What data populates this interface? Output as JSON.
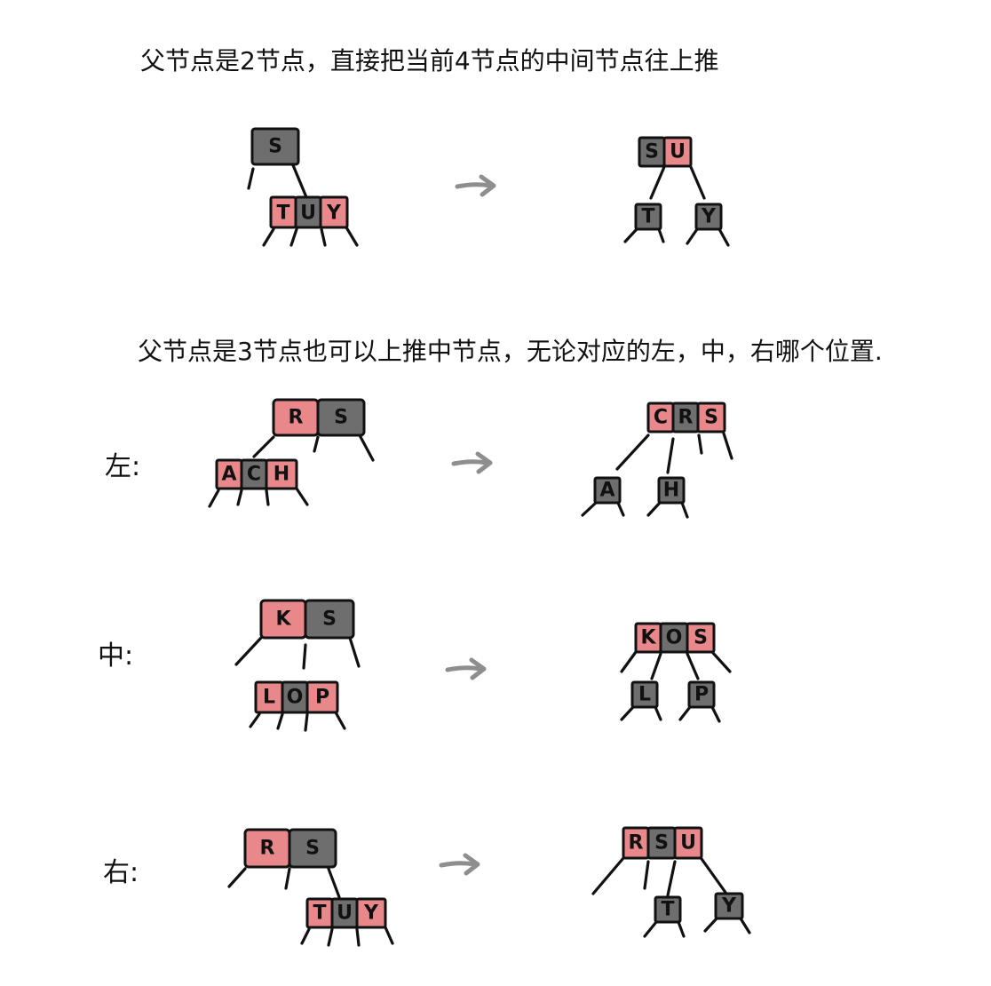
{
  "colors": {
    "red": "#e8888a",
    "black": "#6e6e6e",
    "ink": "#111111",
    "arrow": "#8e8e8e"
  },
  "captions": {
    "two_node": "父节点是2节点，直接把当前4节点的中间节点往上推",
    "three_node": "父节点是3节点也可以上推中节点，无论对应的左，中，右哪个位置."
  },
  "labels": {
    "left": "左:",
    "middle": "中:",
    "right": "右:"
  },
  "diagrams": {
    "two_node": {
      "before": {
        "parent": [
          {
            "k": "S",
            "c": "black"
          }
        ],
        "child": [
          {
            "k": "T",
            "c": "red"
          },
          {
            "k": "U",
            "c": "black"
          },
          {
            "k": "Y",
            "c": "red"
          }
        ]
      },
      "after": {
        "parent": [
          {
            "k": "S",
            "c": "black"
          },
          {
            "k": "U",
            "c": "red"
          }
        ],
        "children": [
          [
            {
              "k": "T",
              "c": "black"
            }
          ],
          [
            {
              "k": "Y",
              "c": "black"
            }
          ]
        ]
      }
    },
    "left": {
      "before": {
        "parent": [
          {
            "k": "R",
            "c": "red"
          },
          {
            "k": "S",
            "c": "black"
          }
        ],
        "child": [
          {
            "k": "A",
            "c": "red"
          },
          {
            "k": "C",
            "c": "black"
          },
          {
            "k": "H",
            "c": "red"
          }
        ]
      },
      "after": {
        "parent": [
          {
            "k": "C",
            "c": "red"
          },
          {
            "k": "R",
            "c": "black"
          },
          {
            "k": "S",
            "c": "red"
          }
        ],
        "children": [
          [
            {
              "k": "A",
              "c": "black"
            }
          ],
          [
            {
              "k": "H",
              "c": "black"
            }
          ]
        ]
      }
    },
    "middle": {
      "before": {
        "parent": [
          {
            "k": "K",
            "c": "red"
          },
          {
            "k": "S",
            "c": "black"
          }
        ],
        "child": [
          {
            "k": "L",
            "c": "red"
          },
          {
            "k": "O",
            "c": "black"
          },
          {
            "k": "P",
            "c": "red"
          }
        ]
      },
      "after": {
        "parent": [
          {
            "k": "K",
            "c": "red"
          },
          {
            "k": "O",
            "c": "black"
          },
          {
            "k": "S",
            "c": "red"
          }
        ],
        "children": [
          [
            {
              "k": "L",
              "c": "black"
            }
          ],
          [
            {
              "k": "P",
              "c": "black"
            }
          ]
        ]
      }
    },
    "right": {
      "before": {
        "parent": [
          {
            "k": "R",
            "c": "red"
          },
          {
            "k": "S",
            "c": "black"
          }
        ],
        "child": [
          {
            "k": "T",
            "c": "red"
          },
          {
            "k": "U",
            "c": "black"
          },
          {
            "k": "Y",
            "c": "red"
          }
        ]
      },
      "after": {
        "parent": [
          {
            "k": "R",
            "c": "red"
          },
          {
            "k": "S",
            "c": "black"
          },
          {
            "k": "U",
            "c": "red"
          }
        ],
        "children": [
          [
            {
              "k": "T",
              "c": "black"
            }
          ],
          [
            {
              "k": "Y",
              "c": "black"
            }
          ]
        ]
      }
    }
  }
}
